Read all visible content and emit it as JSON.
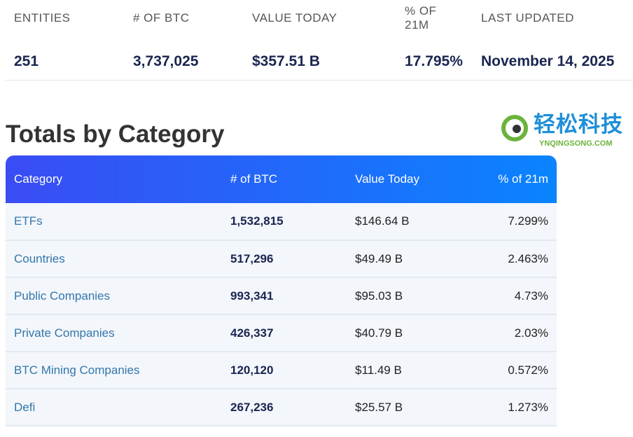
{
  "stats": [
    {
      "label": "ENTITIES",
      "value": "251"
    },
    {
      "label": "# OF BTC",
      "value": "3,737,025"
    },
    {
      "label": "VALUE TODAY",
      "value": "$357.51 B"
    },
    {
      "label": "% OF 21M",
      "value": "17.795%"
    },
    {
      "label": "LAST UPDATED",
      "value": "November 14, 2025"
    }
  ],
  "section_title": "Totals by Category",
  "table": {
    "headers": [
      "Category",
      "# of BTC",
      "Value Today",
      "% of 21m"
    ],
    "rows": [
      [
        "ETFs",
        "1,532,815",
        "$146.64 B",
        "7.299%"
      ],
      [
        "Countries",
        "517,296",
        "$49.49 B",
        "2.463%"
      ],
      [
        "Public Companies",
        "993,341",
        "$95.03 B",
        "4.73%"
      ],
      [
        "Private Companies",
        "426,337",
        "$40.79 B",
        "2.03%"
      ],
      [
        "BTC Mining Companies",
        "120,120",
        "$11.49 B",
        "0.572%"
      ],
      [
        "Defi",
        "267,236",
        "$25.57 B",
        "1.273%"
      ]
    ]
  },
  "watermark": {
    "cn": "轻松科技",
    "en": "YNQINGSONG.COM"
  }
}
